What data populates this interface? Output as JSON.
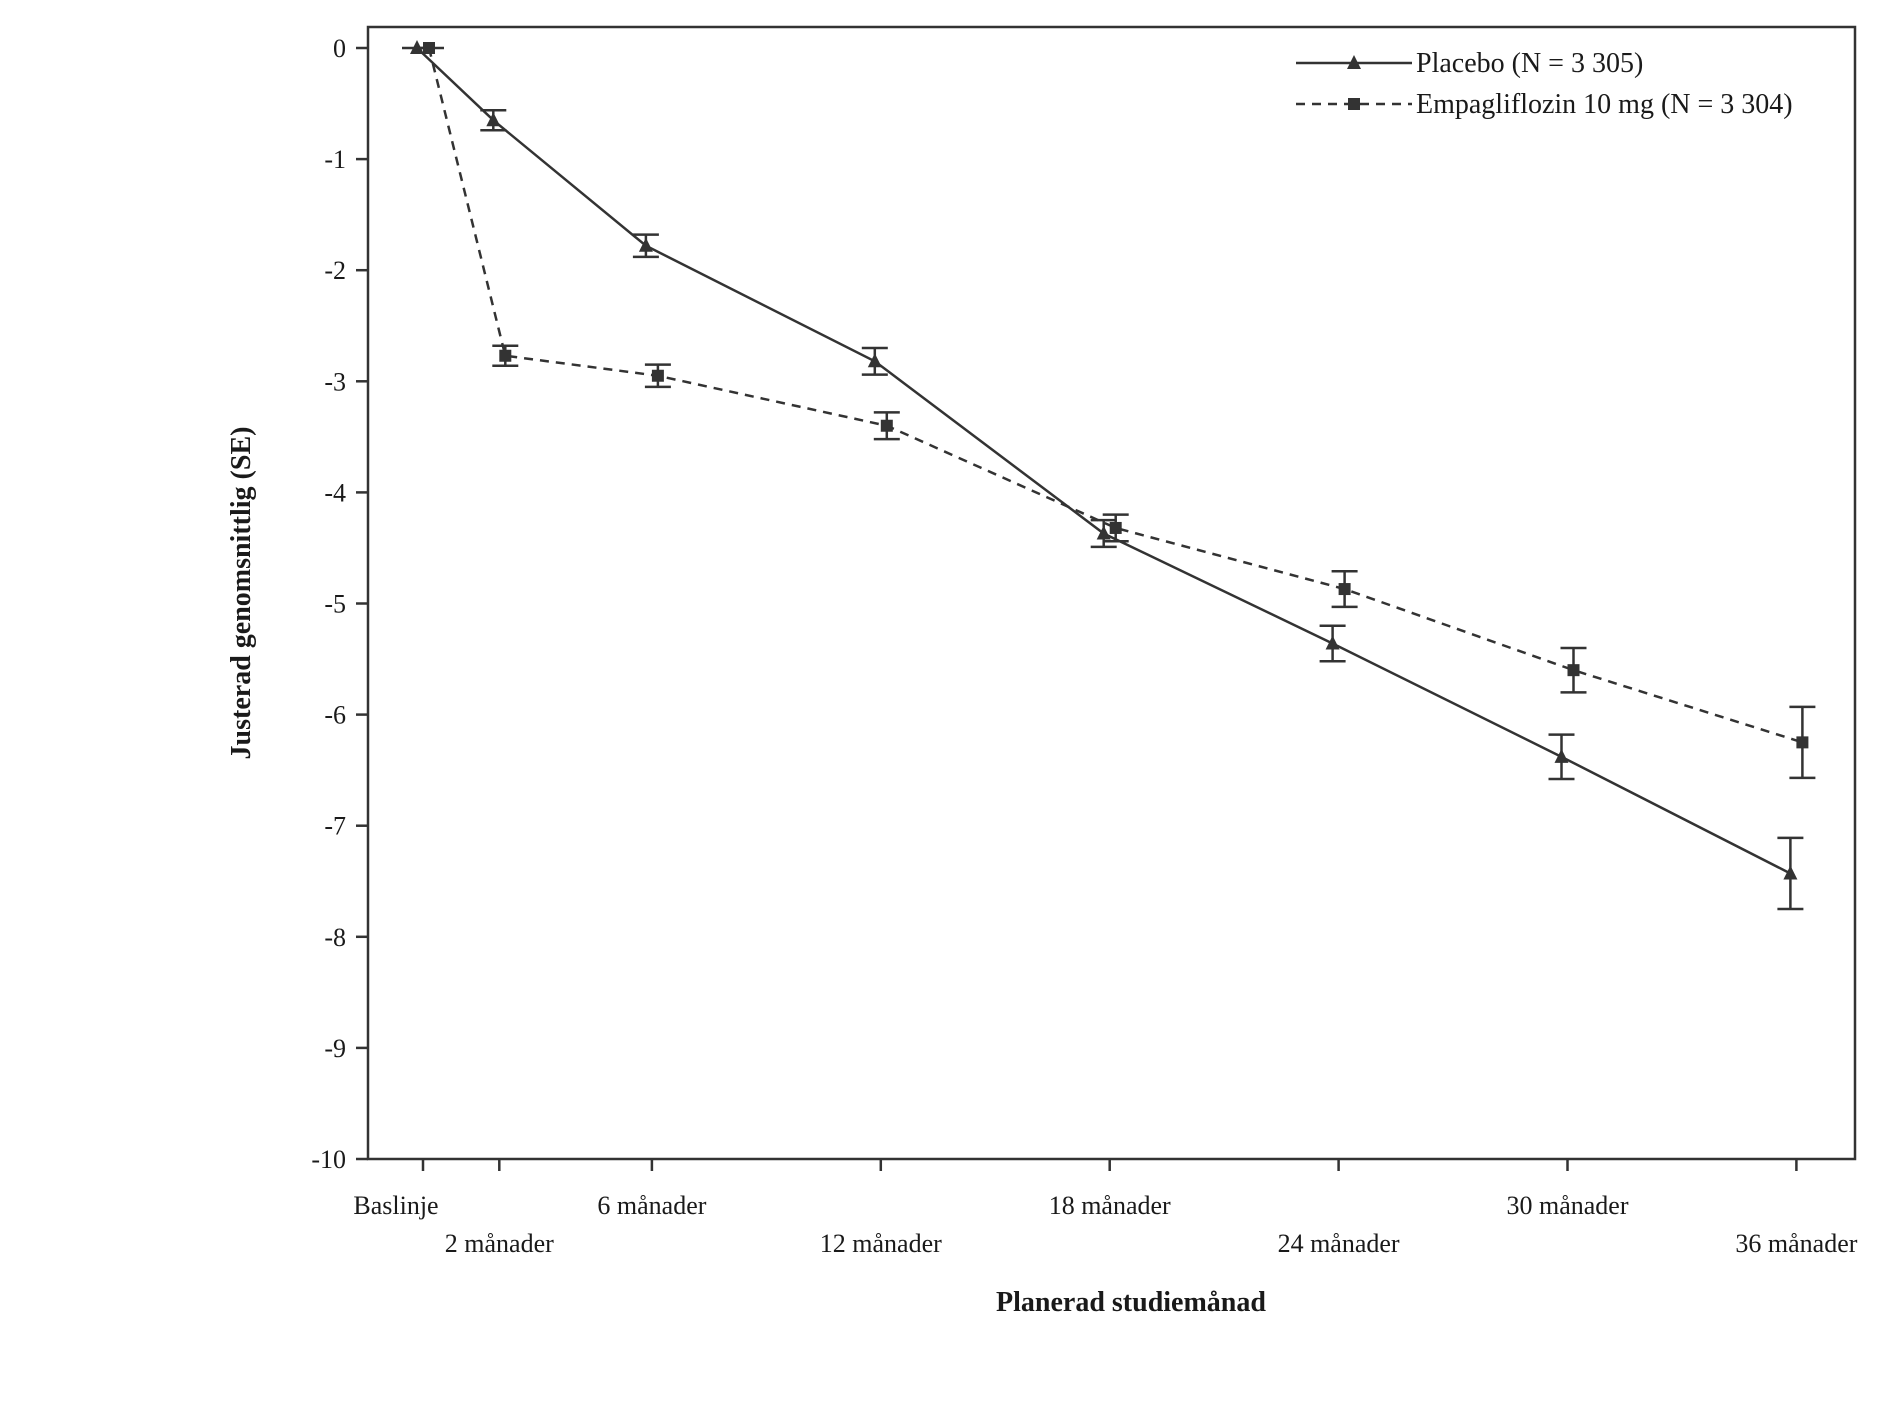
{
  "chart_data": {
    "type": "line",
    "title": "",
    "xlabel": "Planerad studiemånad",
    "ylabel": "Justerad genomsnittlig (SE)",
    "ylim": [
      -10,
      0
    ],
    "yticks": [
      0,
      -1,
      -2,
      -3,
      -4,
      -5,
      -6,
      -7,
      -8,
      -9,
      -10
    ],
    "x_ticks": [
      {
        "month": 0,
        "label": "Baslinje",
        "row": 1
      },
      {
        "month": 2,
        "label": "2 månader",
        "row": 2
      },
      {
        "month": 6,
        "label": "6 månader",
        "row": 1
      },
      {
        "month": 12,
        "label": "12 månader",
        "row": 2
      },
      {
        "month": 18,
        "label": "18 månader",
        "row": 1
      },
      {
        "month": 24,
        "label": "24 månader",
        "row": 2
      },
      {
        "month": 30,
        "label": "30 månader",
        "row": 1
      },
      {
        "month": 36,
        "label": "36 månader",
        "row": 2
      }
    ],
    "legend_position": "top-right",
    "series": [
      {
        "name": "Placebo (N = 3 305)",
        "style": "solid",
        "marker": "triangle",
        "color": "#333333",
        "points": [
          {
            "x": 0,
            "y": 0.0,
            "se": 0.0
          },
          {
            "x": 2,
            "y": -0.65,
            "se": 0.09
          },
          {
            "x": 6,
            "y": -1.78,
            "se": 0.1
          },
          {
            "x": 12,
            "y": -2.82,
            "se": 0.12
          },
          {
            "x": 18,
            "y": -4.37,
            "se": 0.12
          },
          {
            "x": 24,
            "y": -5.36,
            "se": 0.16
          },
          {
            "x": 30,
            "y": -6.38,
            "se": 0.2
          },
          {
            "x": 36,
            "y": -7.43,
            "se": 0.32
          }
        ]
      },
      {
        "name": "Empagliflozin 10 mg (N = 3 304)",
        "style": "dashed",
        "marker": "square",
        "color": "#333333",
        "points": [
          {
            "x": 0,
            "y": 0.0,
            "se": 0.0
          },
          {
            "x": 2,
            "y": -2.77,
            "se": 0.09
          },
          {
            "x": 6,
            "y": -2.95,
            "se": 0.1
          },
          {
            "x": 12,
            "y": -3.4,
            "se": 0.12
          },
          {
            "x": 18,
            "y": -4.32,
            "se": 0.12
          },
          {
            "x": 24,
            "y": -4.87,
            "se": 0.16
          },
          {
            "x": 30,
            "y": -5.6,
            "se": 0.2
          },
          {
            "x": 36,
            "y": -6.25,
            "se": 0.32
          }
        ]
      }
    ]
  }
}
